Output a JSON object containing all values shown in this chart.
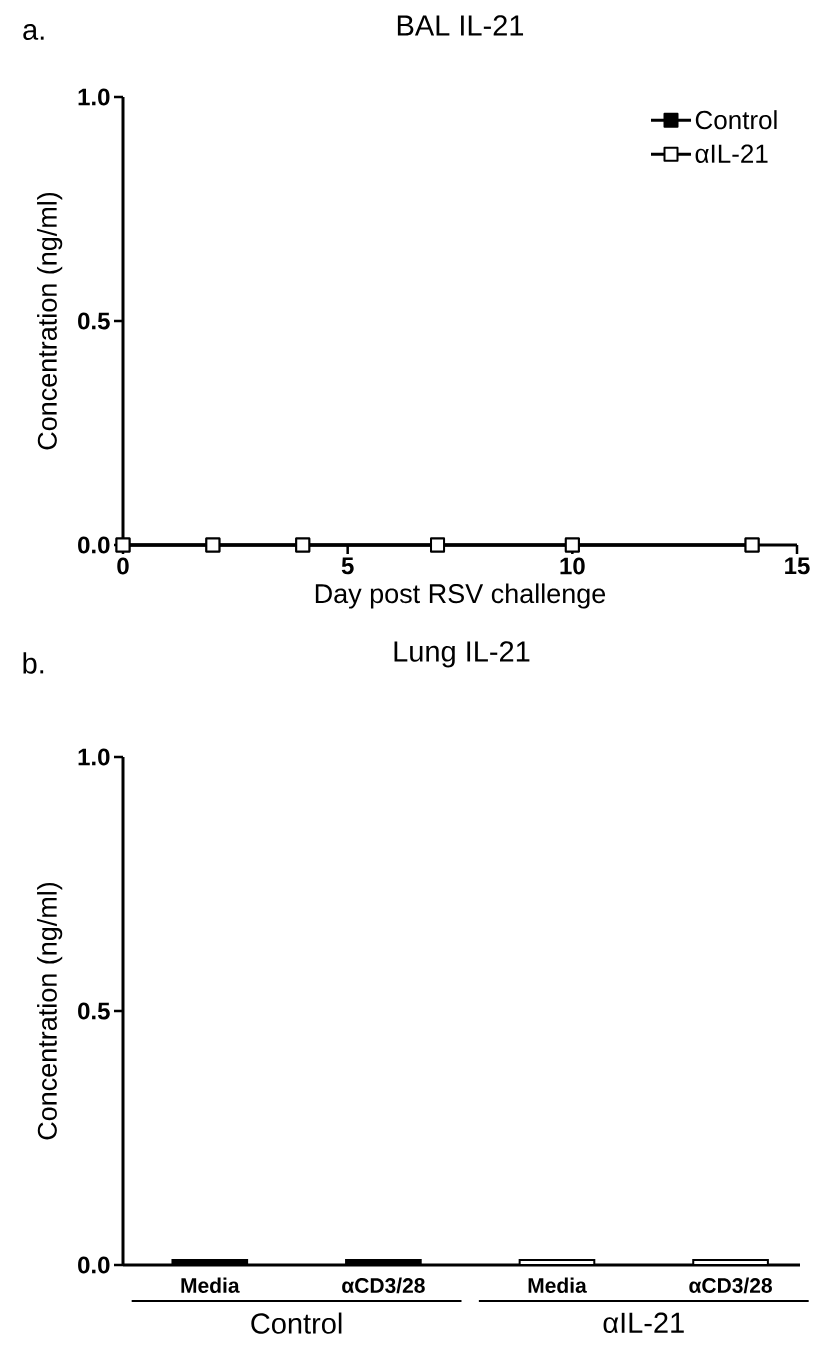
{
  "chart_data": [
    {
      "type": "line",
      "title": "BAL IL-21",
      "xlabel": "Day post RSV challenge",
      "ylabel": "Concentration (ng/ml)",
      "x": [
        0,
        2,
        4,
        7,
        10,
        14
      ],
      "series": [
        {
          "name": "Control",
          "color": "#000000",
          "values": [
            0,
            0,
            0,
            0,
            0,
            0
          ]
        },
        {
          "name": "αIL-21",
          "color": "#000000",
          "values": [
            0,
            0,
            0,
            0,
            0,
            0
          ]
        }
      ],
      "xlim": [
        0,
        15
      ],
      "xticks": [
        0,
        5,
        10,
        15
      ],
      "ylim": [
        0,
        1
      ],
      "yticks": [
        {
          "value": 0,
          "label": "0.0"
        },
        {
          "value": 0.5,
          "label": "0.5"
        },
        {
          "value": 1,
          "label": "1.0"
        }
      ],
      "marker": "square",
      "legend": "top right",
      "annotations": [
        "a."
      ]
    },
    {
      "type": "bar",
      "title": "Lung IL-21",
      "ylabel": "Concentration (ng/ml)",
      "categories": [
        "Media",
        "αCD3/28",
        "Media",
        "αCD3/28"
      ],
      "values": [
        0.01,
        0.01,
        0.01,
        0.01
      ],
      "colors": [
        "#000000",
        "#000000",
        "#ffffff",
        "#ffffff"
      ],
      "ylim": [
        0,
        1
      ],
      "yticks": [
        {
          "value": 0,
          "label": "0.0"
        },
        {
          "value": 0.5,
          "label": "0.5"
        },
        {
          "value": 1,
          "label": "1.0"
        }
      ],
      "annotations": [
        "b.",
        "Control",
        "αIL-21"
      ]
    }
  ]
}
